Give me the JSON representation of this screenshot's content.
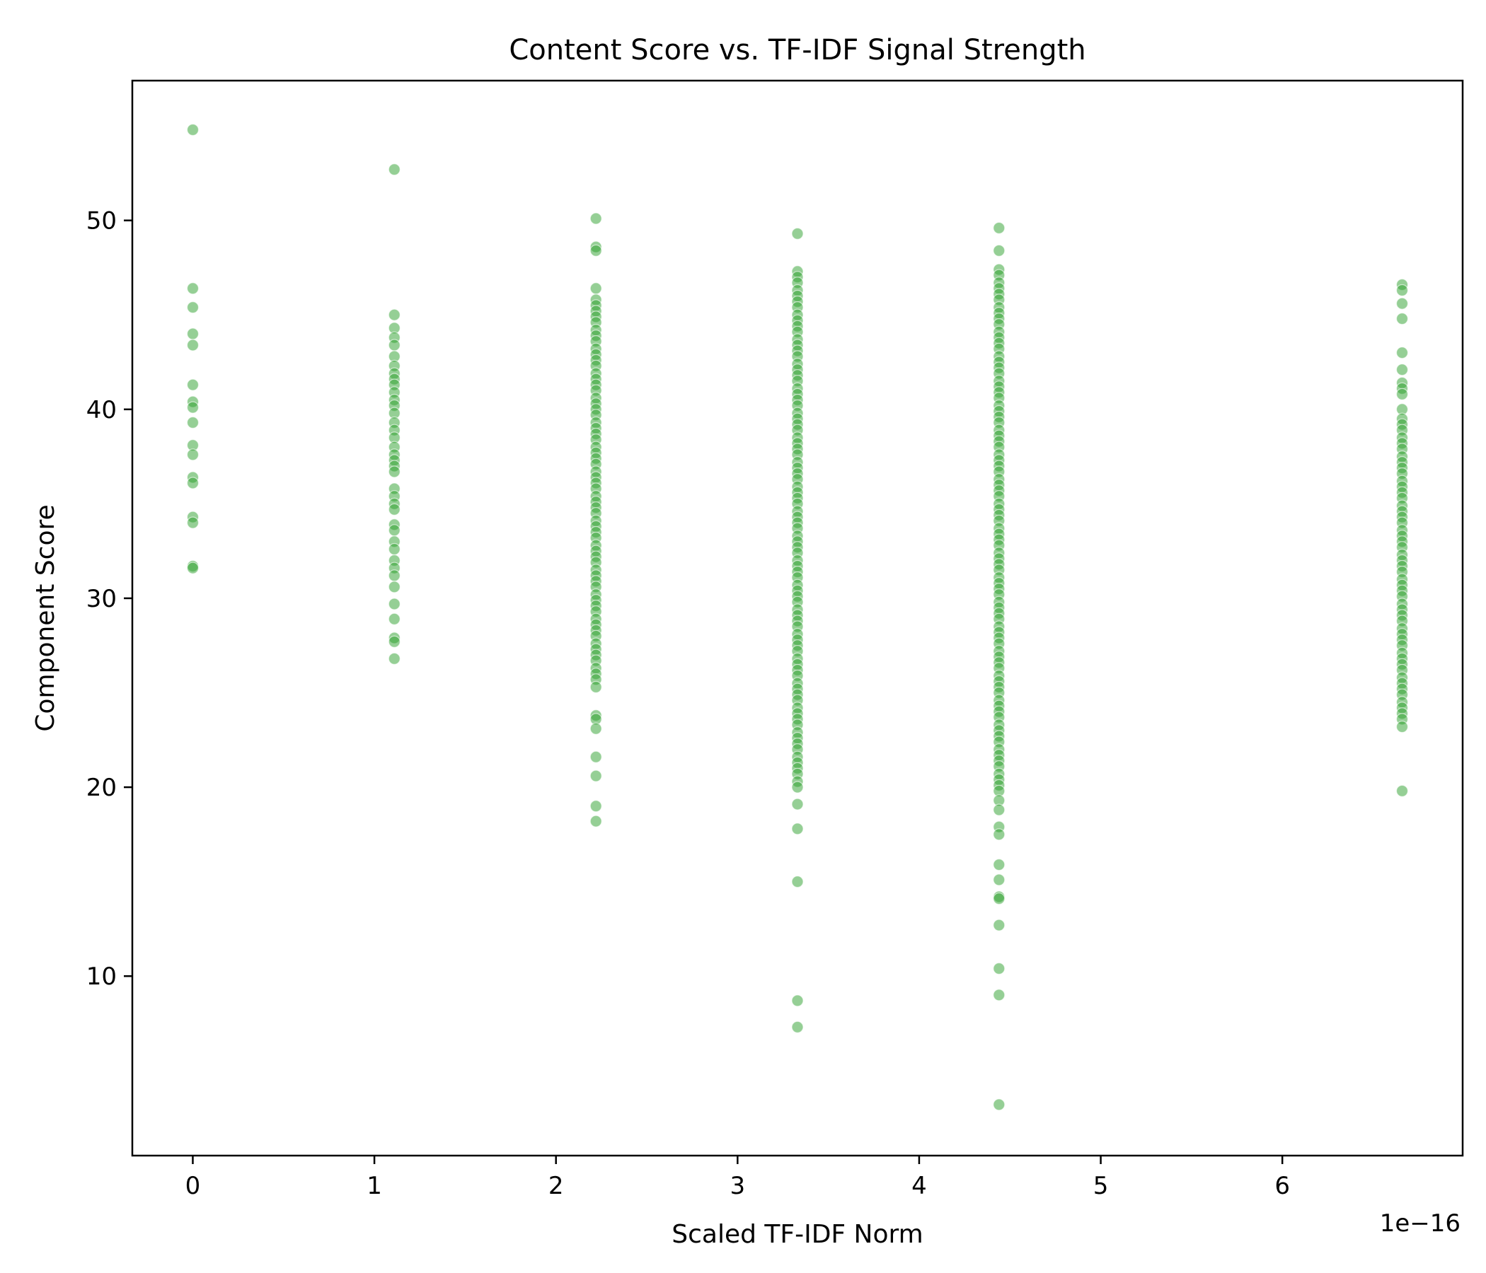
{
  "chart_data": {
    "type": "scatter",
    "title": "Content Score vs. TF-IDF Signal Strength",
    "xlabel": "Scaled TF-IDF Norm",
    "ylabel": "Component Score",
    "x_offset_label": "1e−16",
    "x_scale": 1e-16,
    "xlim": [
      -0.333,
      6.993
    ],
    "ylim": [
      0.5,
      57.4
    ],
    "xticks": [
      0,
      1,
      2,
      3,
      4,
      5,
      6
    ],
    "yticks": [
      10,
      20,
      30,
      40,
      50
    ],
    "grid": false,
    "marker_color": "#2ca02c",
    "marker_alpha": 0.5,
    "series": [
      {
        "x": 0,
        "y": [
          54.8,
          46.4,
          45.4,
          44.0,
          43.4,
          41.3,
          40.4,
          40.1,
          39.3,
          38.1,
          37.6,
          36.4,
          36.1,
          34.3,
          34.0,
          31.7,
          31.6
        ]
      },
      {
        "x": 1.11,
        "y": [
          52.7,
          45.0,
          44.3,
          43.8,
          43.4,
          42.8,
          42.3,
          41.9,
          41.6,
          41.3,
          40.9,
          40.5,
          40.2,
          39.8,
          39.3,
          38.9,
          38.5,
          38.0,
          37.6,
          37.3,
          37.0,
          36.7,
          35.8,
          35.4,
          35.0,
          34.7,
          33.9,
          33.6,
          33.0,
          32.6,
          32.0,
          31.6,
          31.2,
          30.6,
          29.7,
          28.9,
          27.9,
          27.7,
          26.8
        ]
      },
      {
        "x": 2.22,
        "y": [
          50.1,
          48.6,
          48.4,
          46.4,
          45.8,
          45.5,
          45.2,
          44.9,
          44.6,
          44.2,
          43.9,
          43.6,
          43.2,
          42.9,
          42.6,
          42.3,
          41.9,
          41.6,
          41.3,
          41.0,
          40.6,
          40.3,
          40.0,
          39.7,
          39.3,
          39.0,
          38.7,
          38.4,
          38.0,
          37.7,
          37.4,
          37.1,
          36.7,
          36.4,
          36.1,
          35.8,
          35.4,
          35.1,
          34.8,
          34.5,
          34.1,
          33.8,
          33.5,
          33.2,
          32.8,
          32.5,
          32.2,
          31.9,
          31.5,
          31.2,
          30.9,
          30.6,
          30.2,
          29.9,
          29.6,
          29.3,
          28.9,
          28.6,
          28.3,
          28.0,
          27.6,
          27.3,
          27.0,
          26.7,
          26.3,
          26.0,
          25.7,
          25.3,
          23.8,
          23.6,
          23.1,
          21.6,
          20.6,
          19.0,
          18.2
        ]
      },
      {
        "x": 3.33,
        "y": [
          49.3,
          47.3,
          47.0,
          46.7,
          46.3,
          46.0,
          45.7,
          45.4,
          45.0,
          44.7,
          44.4,
          44.1,
          43.7,
          43.4,
          43.1,
          42.8,
          42.4,
          42.1,
          41.8,
          41.5,
          41.1,
          40.8,
          40.5,
          40.2,
          39.8,
          39.5,
          39.2,
          38.9,
          38.5,
          38.2,
          37.9,
          37.6,
          37.2,
          36.9,
          36.6,
          36.3,
          35.9,
          35.6,
          35.3,
          35.0,
          34.6,
          34.3,
          34.0,
          33.7,
          33.3,
          33.0,
          32.7,
          32.4,
          32.0,
          31.7,
          31.4,
          31.1,
          30.7,
          30.4,
          30.1,
          29.8,
          29.4,
          29.1,
          28.8,
          28.5,
          28.1,
          27.8,
          27.5,
          27.2,
          26.8,
          26.5,
          26.2,
          25.9,
          25.5,
          25.2,
          24.9,
          24.6,
          24.2,
          23.9,
          23.6,
          23.3,
          22.9,
          22.6,
          22.3,
          22.0,
          21.6,
          21.3,
          21.0,
          20.7,
          20.3,
          20.0,
          19.1,
          17.8,
          15.0,
          8.7,
          7.3
        ]
      },
      {
        "x": 4.44,
        "y": [
          49.6,
          48.4,
          47.4,
          47.1,
          46.7,
          46.4,
          46.1,
          45.8,
          45.4,
          45.1,
          44.8,
          44.5,
          44.1,
          43.8,
          43.5,
          43.2,
          42.8,
          42.5,
          42.2,
          41.9,
          41.5,
          41.2,
          40.9,
          40.6,
          40.2,
          39.9,
          39.6,
          39.3,
          38.9,
          38.6,
          38.3,
          38.0,
          37.6,
          37.3,
          37.0,
          36.7,
          36.3,
          36.0,
          35.7,
          35.4,
          35.0,
          34.7,
          34.4,
          34.1,
          33.7,
          33.4,
          33.1,
          32.8,
          32.4,
          32.1,
          31.8,
          31.5,
          31.1,
          30.8,
          30.5,
          30.2,
          29.8,
          29.5,
          29.2,
          28.9,
          28.5,
          28.2,
          27.9,
          27.6,
          27.2,
          26.9,
          26.6,
          26.3,
          25.9,
          25.6,
          25.3,
          25.0,
          24.6,
          24.3,
          24.0,
          23.7,
          23.3,
          23.0,
          22.7,
          22.4,
          22.0,
          21.7,
          21.4,
          21.1,
          20.7,
          20.4,
          20.1,
          19.8,
          19.3,
          18.8,
          17.9,
          17.5,
          15.9,
          15.1,
          14.2,
          14.1,
          12.7,
          10.4,
          9.0,
          3.2
        ]
      },
      {
        "x": 6.66,
        "y": [
          46.6,
          46.3,
          45.6,
          44.8,
          43.0,
          42.1,
          41.4,
          41.1,
          40.8,
          40.0,
          39.5,
          39.2,
          38.9,
          38.5,
          38.2,
          37.9,
          37.5,
          37.2,
          36.9,
          36.6,
          36.2,
          35.9,
          35.6,
          35.3,
          34.9,
          34.6,
          34.3,
          34.0,
          33.6,
          33.3,
          33.0,
          32.7,
          32.3,
          32.0,
          31.7,
          31.4,
          31.0,
          30.7,
          30.4,
          30.1,
          29.7,
          29.4,
          29.1,
          28.8,
          28.4,
          28.1,
          27.8,
          27.5,
          27.1,
          26.8,
          26.5,
          26.2,
          25.8,
          25.5,
          25.2,
          24.9,
          24.5,
          24.2,
          23.9,
          23.6,
          23.2,
          19.8
        ]
      }
    ]
  }
}
